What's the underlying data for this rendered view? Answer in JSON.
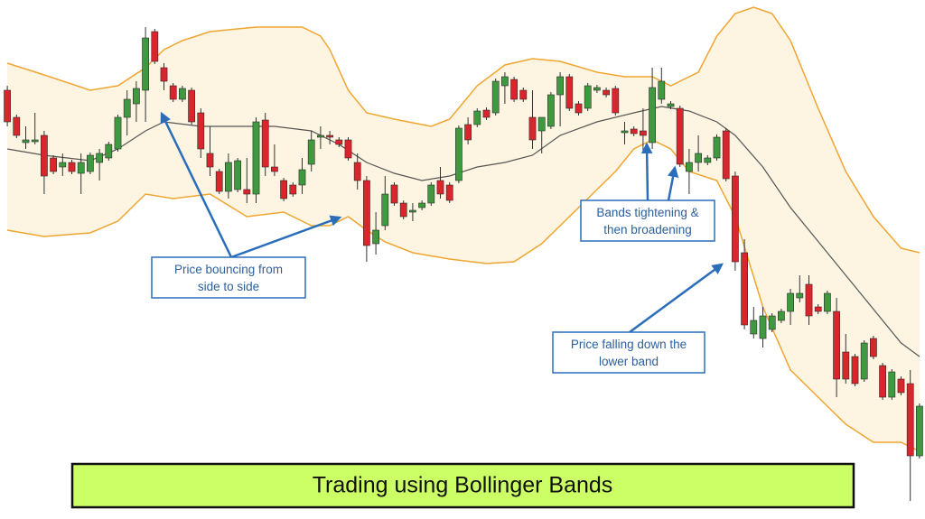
{
  "chart_data": {
    "type": "candlestick",
    "title": "Trading using Bollinger Bands",
    "xlim": [
      -0.5,
      99.5
    ],
    "ylim": [
      0,
      575
    ],
    "up_color": "#3f9a3f",
    "down_color": "#d8262c",
    "wick_color": "#333333",
    "open": [
      475,
      445,
      417,
      418,
      425,
      400,
      390,
      395,
      383,
      385,
      395,
      400,
      410,
      445,
      460,
      475,
      540,
      500,
      480,
      465,
      475,
      450,
      405,
      385,
      363,
      365,
      365,
      360,
      442,
      390,
      375,
      370,
      370,
      393,
      423,
      425,
      420,
      420,
      395,
      375,
      305,
      325,
      370,
      350,
      340,
      345,
      350,
      375,
      370,
      375,
      437,
      437,
      453,
      450,
      480,
      487,
      475,
      445,
      430,
      435,
      470,
      490,
      460,
      455,
      475,
      475,
      477,
      428,
      432,
      430,
      417,
      465,
      457,
      455,
      385,
      395,
      395,
      400,
      430,
      380,
      295,
      205,
      200,
      210,
      220,
      230,
      245,
      260,
      235,
      230,
      230,
      185,
      180,
      155,
      200,
      170,
      135,
      155,
      150,
      70
    ],
    "high": [
      480,
      448,
      435,
      450,
      430,
      403,
      405,
      398,
      405,
      406,
      410,
      418,
      448,
      475,
      485,
      545,
      543,
      505,
      483,
      480,
      478,
      455,
      435,
      388,
      405,
      400,
      400,
      445,
      450,
      415,
      378,
      373,
      400,
      430,
      435,
      430,
      423,
      423,
      405,
      380,
      340,
      380,
      373,
      353,
      350,
      353,
      373,
      390,
      373,
      436,
      445,
      455,
      456,
      488,
      495,
      490,
      478,
      475,
      445,
      473,
      495,
      493,
      463,
      483,
      481,
      478,
      480,
      440,
      435,
      455,
      500,
      500,
      463,
      458,
      410,
      425,
      403,
      426,
      433,
      385,
      310,
      235,
      235,
      228,
      233,
      255,
      270,
      270,
      238,
      253,
      245,
      205,
      183,
      198,
      203,
      173,
      166,
      158,
      165,
      128
    ],
    "low": [
      435,
      422,
      410,
      415,
      360,
      382,
      380,
      382,
      360,
      382,
      375,
      397,
      407,
      425,
      440,
      440,
      504,
      475,
      462,
      462,
      437,
      400,
      380,
      360,
      355,
      362,
      350,
      350,
      380,
      380,
      352,
      357,
      360,
      385,
      410,
      415,
      412,
      397,
      365,
      285,
      293,
      320,
      347,
      332,
      330,
      342,
      347,
      355,
      350,
      372,
      415,
      434,
      442,
      447,
      460,
      462,
      462,
      410,
      405,
      432,
      435,
      452,
      447,
      452,
      472,
      467,
      447,
      415,
      424,
      405,
      410,
      460,
      454,
      390,
      360,
      385,
      392,
      397,
      374,
      275,
      210,
      200,
      190,
      207,
      217,
      215,
      240,
      215,
      227,
      227,
      135,
      150,
      147,
      152,
      177,
      132,
      132,
      137,
      20,
      67
    ],
    "close": [
      440,
      425,
      420,
      420,
      380,
      385,
      395,
      385,
      395,
      403,
      405,
      415,
      445,
      465,
      477,
      533,
      507,
      485,
      465,
      477,
      440,
      410,
      390,
      363,
      395,
      397,
      360,
      440,
      390,
      385,
      355,
      360,
      387,
      420,
      425,
      423,
      415,
      400,
      375,
      303,
      320,
      360,
      350,
      335,
      342,
      350,
      370,
      360,
      353,
      433,
      420,
      452,
      445,
      485,
      490,
      465,
      465,
      420,
      445,
      470,
      490,
      455,
      450,
      480,
      478,
      470,
      450,
      430,
      427,
      425,
      478,
      485,
      460,
      393,
      395,
      405,
      400,
      423,
      377,
      285,
      215,
      220,
      225,
      225,
      230,
      250,
      250,
      225,
      230,
      250,
      155,
      155,
      150,
      195,
      180,
      135,
      163,
      140,
      70,
      125
    ],
    "upper": {
      "color": "#f0a530",
      "x": [
        0,
        4,
        9,
        12,
        15,
        17,
        19,
        22,
        27,
        32,
        34,
        35,
        37,
        39,
        42,
        46,
        48,
        51,
        54,
        57,
        60,
        64,
        67,
        70,
        72,
        75,
        77,
        79,
        81,
        83,
        85,
        88,
        91,
        94,
        97,
        99
      ],
      "values": [
        505,
        492,
        475,
        480,
        500,
        520,
        530,
        540,
        545,
        545,
        535,
        520,
        475,
        450,
        443,
        435,
        443,
        480,
        503,
        510,
        507,
        495,
        490,
        490,
        480,
        495,
        535,
        560,
        567,
        560,
        530,
        455,
        385,
        335,
        300,
        295
      ]
    },
    "middle": {
      "color": "#555555",
      "x": [
        0,
        4,
        9,
        12,
        15,
        17,
        21,
        25,
        29,
        33,
        36,
        39,
        42,
        45,
        48,
        51,
        54,
        57,
        60,
        64,
        68,
        71,
        74,
        77,
        79,
        82,
        85,
        89,
        93,
        97,
        99
      ],
      "values": [
        410,
        403,
        397,
        410,
        430,
        440,
        435,
        435,
        435,
        430,
        415,
        395,
        383,
        375,
        380,
        390,
        395,
        403,
        425,
        440,
        450,
        457,
        452,
        440,
        425,
        390,
        345,
        295,
        245,
        195,
        180
      ]
    },
    "lower": {
      "color": "#f0a530",
      "x": [
        0,
        4,
        9,
        12,
        15,
        18,
        22,
        26,
        30,
        33,
        35,
        37,
        39,
        41,
        44,
        48,
        52,
        55,
        58,
        61,
        63,
        66,
        68,
        70,
        72,
        74,
        77,
        79,
        82,
        85,
        88,
        91,
        94,
        97,
        99
      ],
      "values": [
        320,
        313,
        317,
        330,
        360,
        355,
        360,
        335,
        340,
        325,
        325,
        335,
        320,
        307,
        295,
        288,
        283,
        285,
        305,
        335,
        355,
        385,
        410,
        420,
        410,
        385,
        375,
        335,
        235,
        165,
        135,
        105,
        85,
        85,
        75
      ]
    },
    "band_fill": "#fdf5e2",
    "annotations": [
      {
        "lines": [
          "Price bouncing from",
          "side to side"
        ]
      },
      {
        "lines": [
          "Bands tightening &",
          "then broadening"
        ]
      },
      {
        "lines": [
          "Price falling down the",
          "lower band"
        ]
      }
    ]
  }
}
